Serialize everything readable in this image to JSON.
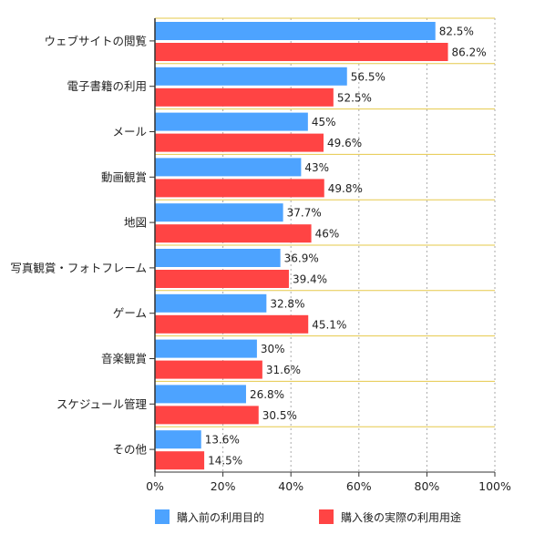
{
  "chart_data": {
    "type": "bar",
    "orientation": "horizontal",
    "title": "",
    "xlabel": "",
    "ylabel": "",
    "xlim": [
      0,
      100
    ],
    "x_ticks": [
      "0%",
      "20%",
      "40%",
      "60%",
      "80%",
      "100%"
    ],
    "grid": "vertical dotted",
    "legend_position": "bottom",
    "categories": [
      "ウェブサイトの閲覧",
      "電子書籍の利用",
      "メール",
      "動画観賞",
      "地図",
      "写真観賞・フォトフレーム",
      "ゲーム",
      "音楽観賞",
      "スケジュール管理",
      "その他"
    ],
    "series": [
      {
        "name": "購入前の利用目的",
        "color": "#4da3ff",
        "values": [
          82.5,
          56.5,
          45,
          43,
          37.7,
          36.9,
          32.8,
          30,
          26.8,
          13.6
        ],
        "labels": [
          "82.5%",
          "56.5%",
          "45%",
          "43%",
          "37.7%",
          "36.9%",
          "32.8%",
          "30%",
          "26.8%",
          "13.6%"
        ]
      },
      {
        "name": "購入後の実際の利用用途",
        "color": "#ff4444",
        "values": [
          86.2,
          52.5,
          49.6,
          49.8,
          46,
          39.4,
          45.1,
          31.6,
          30.5,
          14.5
        ],
        "labels": [
          "86.2%",
          "52.5%",
          "49.6%",
          "49.8%",
          "46%",
          "39.4%",
          "45.1%",
          "31.6%",
          "30.5%",
          "14.5%"
        ]
      }
    ],
    "colors": {
      "separator": "#e6c84a",
      "grid": "#aaaaaa",
      "axis": "#333333"
    }
  }
}
